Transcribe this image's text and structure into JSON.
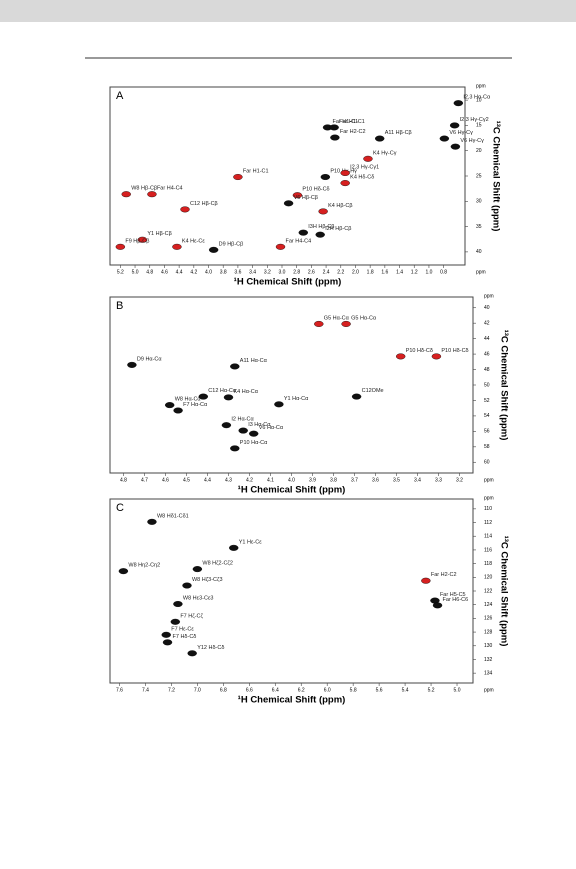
{
  "chart_data": [
    {
      "type": "scatter",
      "panel": "A",
      "x_label": "¹H Chemical Shift (ppm)",
      "y_label": "¹³C Chemical Shift (ppm)",
      "unit": "ppm",
      "xlim": [
        5.3,
        0.55
      ],
      "ylim": [
        8,
        42
      ],
      "xticks": [
        5.2,
        {
          "value": 5.0,
          "label": "5.0"
        },
        4.8,
        4.6,
        4.4,
        4.2,
        {
          "value": 4.0,
          "label": "4.0"
        },
        3.8,
        3.6,
        3.4,
        3.2,
        {
          "value": 3.0,
          "label": "3.0"
        },
        2.8,
        2.6,
        2.4,
        2.2,
        {
          "value": 2.0,
          "label": "2.0"
        },
        1.8,
        1.6,
        1.4,
        1.2,
        {
          "value": 1.0,
          "label": "1.0"
        },
        0.8
      ],
      "yticks": [
        10,
        15,
        20,
        25,
        30,
        35,
        40
      ],
      "x": [
        0.6,
        0.65,
        2.38,
        2.29,
        2.28,
        1.67,
        0.79,
        0.64,
        1.83,
        2.41,
        2.14,
        2.14,
        3.6,
        2.79,
        2.91,
        2.44,
        5.12,
        4.77,
        4.32,
        4.9,
        5.2,
        4.43,
        3.93,
        3.02,
        2.71,
        2.48
      ],
      "y": [
        10.6,
        15,
        15.4,
        15.4,
        17.4,
        17.6,
        17.6,
        19.2,
        21.6,
        25.2,
        24.4,
        26.4,
        25.2,
        28.8,
        30.4,
        32,
        28.6,
        28.6,
        31.6,
        37.6,
        39,
        39,
        39.6,
        39,
        36.2,
        36.6
      ],
      "colors": [
        "#111",
        "#111",
        "#111",
        "#111",
        "#111",
        "#111",
        "#111",
        "#111",
        "#d62020",
        "#111",
        "#d62020",
        "#d62020",
        "#d62020",
        "#d62020",
        "#111",
        "#d62020",
        "#d62020",
        "#d62020",
        "#d62020",
        "#d62020",
        "#d62020",
        "#d62020",
        "#111",
        "#d62020",
        "#111",
        "#111"
      ],
      "labels": [
        "I2,3 Hα-Cα",
        "I2,3 Hγ-Cγ2",
        "Far H1-C1",
        "Far H1-C1",
        "Far H2-C2",
        "A11 Hβ-Cβ",
        "V6 Hγ-Cγ",
        "V6 Hγ-Cγ",
        "K4 Hγ-Cγ",
        "P10 Hγ-Hγ",
        "I2,3 Hγ-Cγ1",
        "K4 Hδ-Cδ",
        "Far H1-C1",
        "P10 Hδ-Cδ",
        "V6 Hβ-Cβ",
        "K4 Hβ-Cβ",
        "W8 Hβ-Cβ",
        "Far H4-C4",
        "C12 Hβ-Cβ",
        "Y1 Hβ-Cβ",
        "F9 Hβ-Cβ",
        "K4 Hε-Cε",
        "D9 Hβ-Cβ",
        "Far H4-C4",
        "I3H Hβ-Cβ",
        "I2H Hβ-Cβ"
      ]
    },
    {
      "type": "scatter",
      "panel": "B",
      "x_label": "¹H Chemical Shift (ppm)",
      "y_label": "¹³C Chemical Shift (ppm)",
      "unit": "ppm",
      "xlim": [
        4.85,
        3.15
      ],
      "ylim": [
        39,
        61
      ],
      "xticks": [
        4.8,
        4.7,
        4.6,
        4.5,
        4.4,
        4.3,
        4.2,
        4.1,
        {
          "value": 4.0,
          "label": "4.0"
        },
        3.9,
        3.8,
        3.7,
        3.6,
        3.5,
        3.4,
        3.3,
        3.2
      ],
      "yticks": [
        40,
        42,
        44,
        46,
        48,
        50,
        52,
        54,
        56,
        58,
        60
      ],
      "x": [
        3.87,
        3.74,
        4.76,
        4.27,
        4.42,
        4.3,
        4.58,
        4.54,
        4.31,
        4.23,
        4.06,
        4.18,
        4.27,
        3.69,
        3.48,
        3.31
      ],
      "y": [
        42.1,
        42.1,
        47.4,
        47.6,
        51.5,
        51.6,
        52.6,
        53.3,
        55.2,
        55.9,
        52.5,
        56.3,
        58.2,
        51.5,
        46.3,
        46.3
      ],
      "colors": [
        "#d62020",
        "#d62020",
        "#111",
        "#111",
        "#111",
        "#111",
        "#111",
        "#111",
        "#111",
        "#111",
        "#111",
        "#111",
        "#111",
        "#111",
        "#d62020",
        "#d62020"
      ],
      "labels": [
        "G5 Hα-Cα",
        "G5 Hα-Cα",
        "D9 Hα-Cα",
        "A11 Hα-Cα",
        "C12 Hα-Cα",
        "K4 Hα-Cα",
        "W8 Hα-Cα",
        "F7 Hα-Cα",
        "I2 Hα-Cα",
        "I3 Hα-Cα",
        "Y1 Hα-Cα",
        "V6 Hα-Cα",
        "P10 Hα-Cα",
        "C12OMe",
        "P10 Hδ-Cδ",
        "P10 Hδ-Cδ"
      ]
    },
    {
      "type": "scatter",
      "panel": "C",
      "x_label": "¹H Chemical Shift (ppm)",
      "y_label": "¹³C Chemical Shift (ppm)",
      "unit": "ppm",
      "xlim": [
        7.65,
        4.9
      ],
      "ylim": [
        109,
        135
      ],
      "xticks": [
        7.6,
        7.4,
        7.2,
        {
          "value": 7.0,
          "label": "7.0"
        },
        6.8,
        6.6,
        6.4,
        6.2,
        {
          "value": 6.0,
          "label": "6.0"
        },
        5.8,
        5.6,
        5.4,
        5.2,
        {
          "value": 5.0,
          "label": "5.0"
        }
      ],
      "yticks": [
        110,
        112,
        114,
        116,
        118,
        120,
        122,
        124,
        126,
        128,
        130,
        132,
        134
      ],
      "x": [
        7.35,
        6.72,
        7.57,
        7.0,
        7.08,
        7.15,
        7.17,
        7.24,
        7.23,
        7.04,
        5.24,
        5.17,
        5.15
      ],
      "y": [
        111.9,
        115.7,
        119.1,
        118.8,
        121.2,
        123.9,
        126.5,
        128.4,
        129.5,
        131.1,
        120.5,
        123.4,
        124.1
      ],
      "colors": [
        "#111",
        "#111",
        "#111",
        "#111",
        "#111",
        "#111",
        "#111",
        "#111",
        "#111",
        "#111",
        "#d62020",
        "#111",
        "#111"
      ],
      "labels": [
        "W8 Hδ1-Cδ1",
        "Y1 Hε-Cε",
        "W8 Hη2-Cη2",
        "W8 Hζ2-Cζ2",
        "W8 Hζ3-Cζ3",
        "W8 Hε3-Cε3",
        "F7 Hζ-Cζ",
        "F7 Hε-Cε",
        "F7 Hδ-Cδ",
        "Y12 Hδ-Cδ",
        "Far H2-C2",
        "Far H5-C5",
        "Far H6-C6"
      ]
    }
  ]
}
